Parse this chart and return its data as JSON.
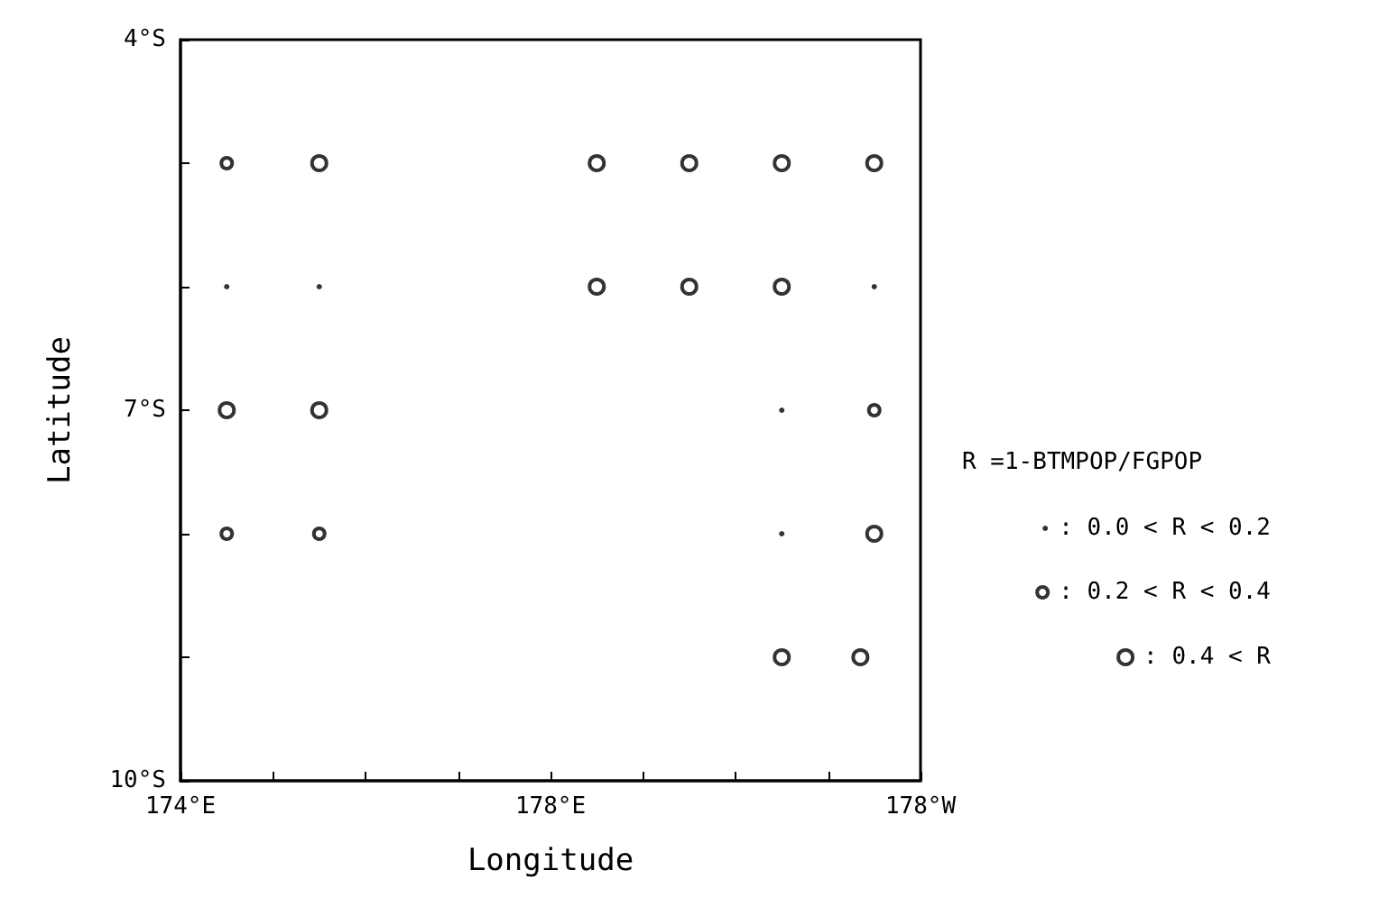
{
  "chart_data": {
    "type": "scatter",
    "xlabel": "Longitude",
    "ylabel": "Latitude",
    "legend_title": "R =1-BTMPOP/FGPOP",
    "xlim": [
      174,
      182
    ],
    "xticks": [
      {
        "value": 174,
        "label": "174°E"
      },
      {
        "value": 175,
        "label": null
      },
      {
        "value": 176,
        "label": null
      },
      {
        "value": 177,
        "label": null
      },
      {
        "value": 178,
        "label": "178°E"
      },
      {
        "value": 179,
        "label": null
      },
      {
        "value": 180,
        "label": null
      },
      {
        "value": 181,
        "label": null
      },
      {
        "value": 182,
        "label": "178°W"
      }
    ],
    "ylim": [
      -10,
      -4
    ],
    "yticks": [
      {
        "value": -10,
        "label": "10°S"
      },
      {
        "value": -9,
        "label": null
      },
      {
        "value": -8,
        "label": null
      },
      {
        "value": -7,
        "label": "7°S"
      },
      {
        "value": -6,
        "label": null
      },
      {
        "value": -5,
        "label": null
      },
      {
        "value": -4,
        "label": "4°S"
      }
    ],
    "grid": false,
    "legend": "right",
    "marker": "circle",
    "series": [
      {
        "name": ": 0.0 < R < 0.2",
        "color": "#000000",
        "x": [
          174.5,
          175.5,
          181.5,
          180.5,
          180.5
        ],
        "values": [
          -6,
          -6,
          -6,
          -7,
          -8
        ]
      },
      {
        "name": ": 0.2 < R < 0.4",
        "color": "#000000",
        "x": [
          174.5,
          181.5,
          174.5,
          175.5
        ],
        "values": [
          -5,
          -7,
          -8,
          -8
        ]
      },
      {
        "name": ": 0.4 < R",
        "color": "#000000",
        "x": [
          175.5,
          178.5,
          179.5,
          180.5,
          181.5,
          178.5,
          179.5,
          180.5,
          174.5,
          175.5,
          181.5,
          180.5,
          181.35
        ],
        "values": [
          -5,
          -5,
          -5,
          -5,
          -5,
          -6,
          -6,
          -6,
          -7,
          -7,
          -8,
          -9,
          -9
        ]
      }
    ]
  }
}
